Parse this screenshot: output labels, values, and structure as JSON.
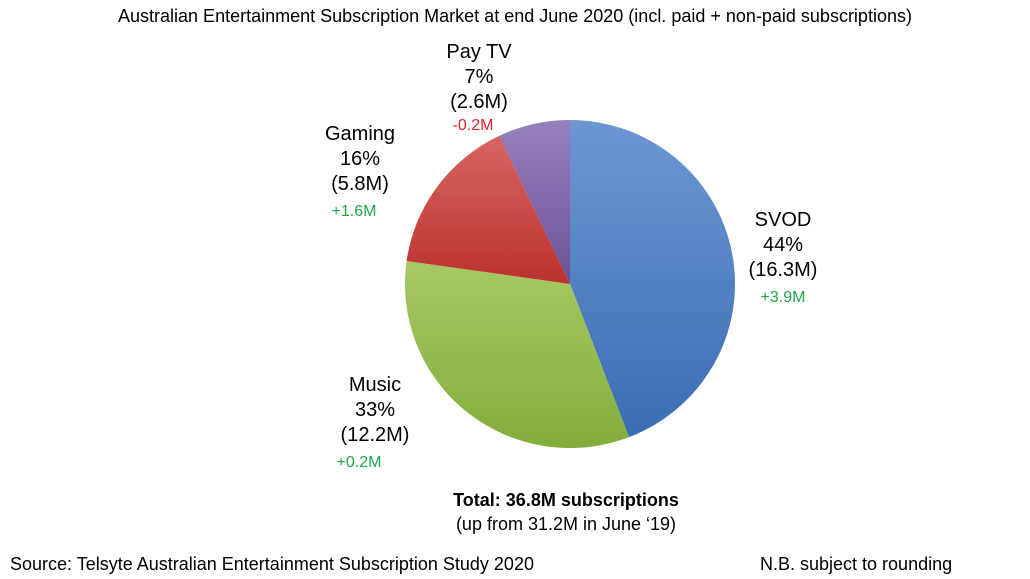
{
  "title": "Australian Entertainment Subscription Market at end June 2020 (incl. paid + non-paid subscriptions)",
  "chart_data": {
    "type": "pie",
    "slices": [
      {
        "name": "SVOD",
        "percent": "44%",
        "subs": "(16.3M)",
        "value": 16.3,
        "change": "+3.9M",
        "change_sign": "pos",
        "color": "#4a7cc2"
      },
      {
        "name": "Music",
        "percent": "33%",
        "subs": "(12.2M)",
        "value": 12.2,
        "change": "+0.2M",
        "change_sign": "pos",
        "color": "#93bb4a"
      },
      {
        "name": "Gaming",
        "percent": "16%",
        "subs": "(5.8M)",
        "value": 5.8,
        "change": "+1.6M",
        "change_sign": "pos",
        "color": "#c9403c"
      },
      {
        "name": "Pay TV",
        "percent": "7%",
        "subs": "(2.6M)",
        "value": 2.6,
        "change": "-0.2M",
        "change_sign": "neg",
        "color": "#7f64a8"
      }
    ],
    "total": "Total: 36.8M subscriptions",
    "total_note": "(up from 31.2M in June ‘19)"
  },
  "footer": {
    "source": "Source: Telsyte Australian Entertainment Subscription Study 2020",
    "note": "N.B. subject to rounding"
  }
}
